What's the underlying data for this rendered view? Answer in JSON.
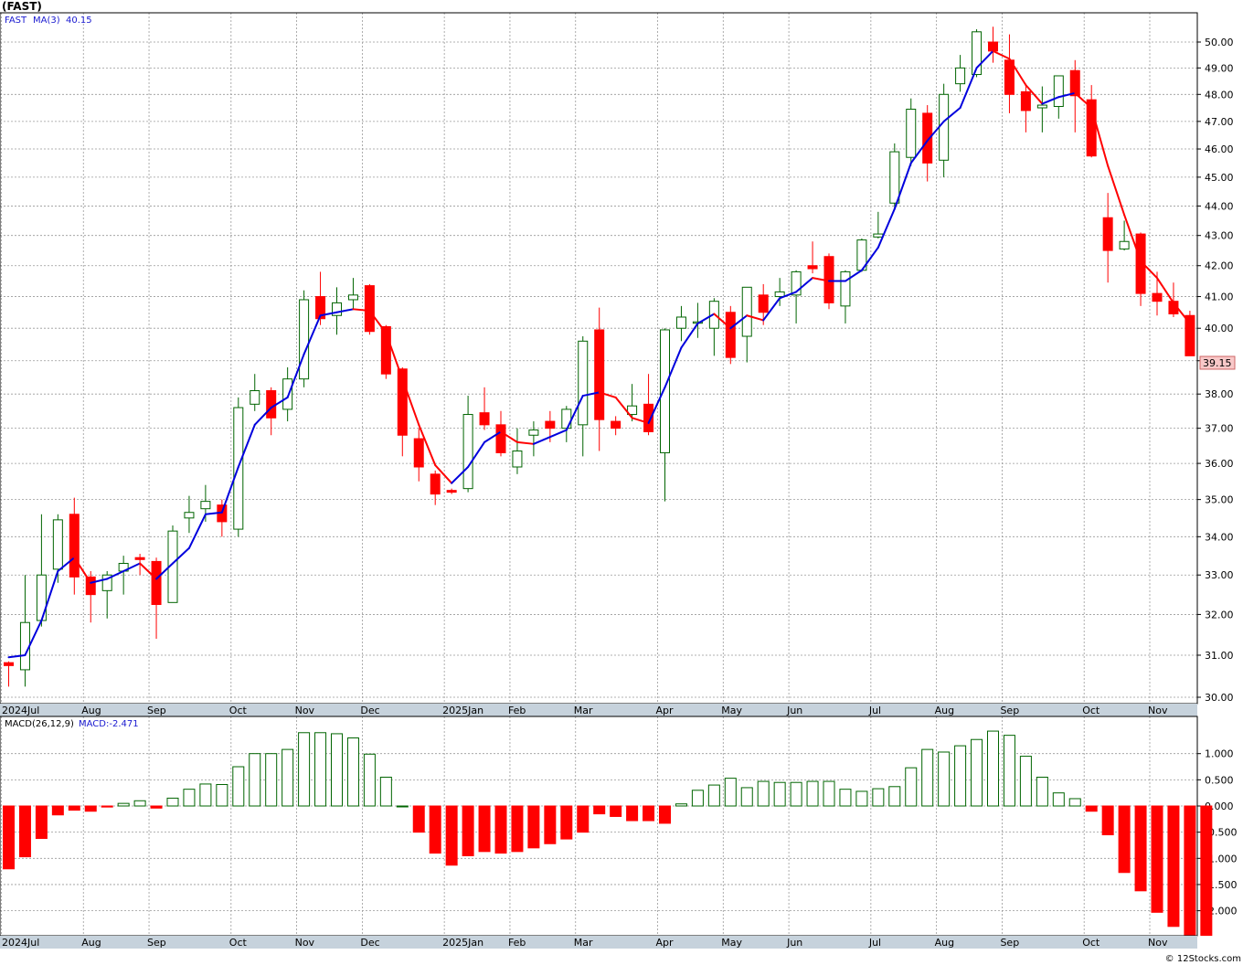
{
  "title": "(FAST)",
  "credit": "© 12Stocks.com",
  "legend": {
    "symbol": "FAST",
    "ma_label": "MA(3)",
    "ma_value": "40.15",
    "macd_params": "MACD(26,12,9)",
    "macd_value": "MACD:-2.471"
  },
  "colors": {
    "up": "#006400",
    "down": "#ff0000",
    "ma_up": "#0000dd",
    "ma_down": "#ff0000",
    "grid": "#999999",
    "axis_band": "#c6d2dc",
    "price_label_bg": "#f8c8c8"
  },
  "last_price_label": "39.15",
  "chart_data": [
    {
      "type": "candlestick",
      "name": "price",
      "y_ticks": [
        "30.00",
        "31.00",
        "32.00",
        "33.00",
        "34.00",
        "35.00",
        "36.00",
        "37.00",
        "38.00",
        "39.00",
        "40.00",
        "41.00",
        "42.00",
        "43.00",
        "44.00",
        "45.00",
        "46.00",
        "47.00",
        "48.00",
        "49.00",
        "50.00"
      ],
      "ylim": [
        29.95,
        50.5
      ],
      "y_scale": "log",
      "grid": true,
      "x_labels": [
        {
          "label": "2024Jul",
          "index": 0
        },
        {
          "label": "Aug",
          "index": 5
        },
        {
          "label": "Sep",
          "index": 9
        },
        {
          "label": "Oct",
          "index": 14
        },
        {
          "label": "Nov",
          "index": 18
        },
        {
          "label": "Dec",
          "index": 22
        },
        {
          "label": "2025Jan",
          "index": 27
        },
        {
          "label": "Feb",
          "index": 31
        },
        {
          "label": "Mar",
          "index": 35
        },
        {
          "label": "Apr",
          "index": 40
        },
        {
          "label": "May",
          "index": 44
        },
        {
          "label": "Jun",
          "index": 48
        },
        {
          "label": "Jul",
          "index": 53
        },
        {
          "label": "Aug",
          "index": 57
        },
        {
          "label": "Sep",
          "index": 61
        },
        {
          "label": "Oct",
          "index": 66
        },
        {
          "label": "Nov",
          "index": 70
        }
      ],
      "candles": [
        {
          "o": 30.82,
          "h": 30.85,
          "l": 30.25,
          "c": 30.75
        },
        {
          "o": 30.65,
          "h": 33.0,
          "l": 30.25,
          "c": 31.8
        },
        {
          "o": 31.85,
          "h": 34.6,
          "l": 31.7,
          "c": 33.0
        },
        {
          "o": 33.15,
          "h": 34.6,
          "l": 32.8,
          "c": 34.45
        },
        {
          "o": 34.6,
          "h": 35.05,
          "l": 32.5,
          "c": 32.95
        },
        {
          "o": 32.95,
          "h": 33.1,
          "l": 31.8,
          "c": 32.5
        },
        {
          "o": 32.6,
          "h": 33.1,
          "l": 31.9,
          "c": 33.0
        },
        {
          "o": 33.1,
          "h": 33.5,
          "l": 32.5,
          "c": 33.3
        },
        {
          "o": 33.45,
          "h": 33.55,
          "l": 33.0,
          "c": 33.4
        },
        {
          "o": 33.35,
          "h": 33.45,
          "l": 31.4,
          "c": 32.25
        },
        {
          "o": 32.3,
          "h": 34.3,
          "l": 32.3,
          "c": 34.15
        },
        {
          "o": 34.5,
          "h": 35.1,
          "l": 34.1,
          "c": 34.65
        },
        {
          "o": 34.75,
          "h": 35.4,
          "l": 34.4,
          "c": 34.95
        },
        {
          "o": 34.85,
          "h": 35.0,
          "l": 34.0,
          "c": 34.4
        },
        {
          "o": 34.2,
          "h": 37.9,
          "l": 34.0,
          "c": 37.6
        },
        {
          "o": 37.7,
          "h": 38.6,
          "l": 37.5,
          "c": 38.1
        },
        {
          "o": 38.1,
          "h": 38.2,
          "l": 36.8,
          "c": 37.3
        },
        {
          "o": 37.55,
          "h": 38.8,
          "l": 37.2,
          "c": 38.45
        },
        {
          "o": 38.45,
          "h": 41.2,
          "l": 38.2,
          "c": 40.9
        },
        {
          "o": 41.0,
          "h": 41.8,
          "l": 40.1,
          "c": 40.3
        },
        {
          "o": 40.4,
          "h": 41.3,
          "l": 39.8,
          "c": 40.8
        },
        {
          "o": 40.9,
          "h": 41.6,
          "l": 40.6,
          "c": 41.05
        },
        {
          "o": 41.35,
          "h": 41.4,
          "l": 39.8,
          "c": 39.9
        },
        {
          "o": 40.05,
          "h": 40.1,
          "l": 38.45,
          "c": 38.6
        },
        {
          "o": 38.75,
          "h": 38.8,
          "l": 36.2,
          "c": 36.8
        },
        {
          "o": 36.7,
          "h": 37.0,
          "l": 35.5,
          "c": 35.9
        },
        {
          "o": 35.7,
          "h": 35.8,
          "l": 34.85,
          "c": 35.15
        },
        {
          "o": 35.25,
          "h": 35.3,
          "l": 35.15,
          "c": 35.2
        },
        {
          "o": 35.3,
          "h": 37.95,
          "l": 35.2,
          "c": 37.4
        },
        {
          "o": 37.45,
          "h": 38.2,
          "l": 36.95,
          "c": 37.1
        },
        {
          "o": 37.1,
          "h": 37.5,
          "l": 36.2,
          "c": 36.3
        },
        {
          "o": 35.9,
          "h": 37.0,
          "l": 35.7,
          "c": 36.35
        },
        {
          "o": 36.8,
          "h": 37.2,
          "l": 36.2,
          "c": 36.95
        },
        {
          "o": 37.2,
          "h": 37.5,
          "l": 36.6,
          "c": 37.0
        },
        {
          "o": 37.0,
          "h": 37.65,
          "l": 36.6,
          "c": 37.55
        },
        {
          "o": 37.1,
          "h": 39.75,
          "l": 36.2,
          "c": 39.6
        },
        {
          "o": 39.95,
          "h": 40.65,
          "l": 36.35,
          "c": 37.25
        },
        {
          "o": 37.2,
          "h": 37.35,
          "l": 36.8,
          "c": 37.0
        },
        {
          "o": 37.4,
          "h": 38.3,
          "l": 37.2,
          "c": 37.65
        },
        {
          "o": 37.7,
          "h": 38.6,
          "l": 36.8,
          "c": 36.9
        },
        {
          "o": 36.3,
          "h": 40.0,
          "l": 34.95,
          "c": 39.95
        },
        {
          "o": 40.0,
          "h": 40.7,
          "l": 39.6,
          "c": 40.35
        },
        {
          "o": 40.2,
          "h": 40.8,
          "l": 39.7,
          "c": 40.2
        },
        {
          "o": 40.0,
          "h": 40.95,
          "l": 39.15,
          "c": 40.85
        },
        {
          "o": 40.5,
          "h": 40.7,
          "l": 38.9,
          "c": 39.1
        },
        {
          "o": 39.75,
          "h": 41.3,
          "l": 38.95,
          "c": 41.3
        },
        {
          "o": 41.05,
          "h": 41.4,
          "l": 40.1,
          "c": 40.5
        },
        {
          "o": 41.0,
          "h": 41.6,
          "l": 40.7,
          "c": 41.15
        },
        {
          "o": 41.05,
          "h": 41.85,
          "l": 40.15,
          "c": 41.8
        },
        {
          "o": 42.0,
          "h": 42.8,
          "l": 41.75,
          "c": 41.9
        },
        {
          "o": 42.3,
          "h": 42.4,
          "l": 40.6,
          "c": 40.8
        },
        {
          "o": 40.7,
          "h": 41.85,
          "l": 40.15,
          "c": 41.8
        },
        {
          "o": 41.85,
          "h": 42.9,
          "l": 41.8,
          "c": 42.85
        },
        {
          "o": 42.95,
          "h": 43.8,
          "l": 42.9,
          "c": 43.05
        },
        {
          "o": 44.1,
          "h": 46.2,
          "l": 43.9,
          "c": 45.9
        },
        {
          "o": 45.7,
          "h": 47.85,
          "l": 45.4,
          "c": 47.45
        },
        {
          "o": 47.3,
          "h": 47.6,
          "l": 44.85,
          "c": 45.5
        },
        {
          "o": 45.6,
          "h": 48.4,
          "l": 45.0,
          "c": 48.0
        },
        {
          "o": 48.4,
          "h": 49.5,
          "l": 48.1,
          "c": 49.0
        },
        {
          "o": 48.75,
          "h": 50.5,
          "l": 48.65,
          "c": 50.4
        },
        {
          "o": 50.0,
          "h": 50.6,
          "l": 49.2,
          "c": 49.65
        },
        {
          "o": 49.3,
          "h": 50.3,
          "l": 47.3,
          "c": 48.0
        },
        {
          "o": 48.1,
          "h": 48.4,
          "l": 46.6,
          "c": 47.4
        },
        {
          "o": 47.5,
          "h": 48.3,
          "l": 46.6,
          "c": 47.6
        },
        {
          "o": 47.55,
          "h": 48.7,
          "l": 47.1,
          "c": 48.7
        },
        {
          "o": 48.9,
          "h": 49.3,
          "l": 46.6,
          "c": 47.95
        },
        {
          "o": 47.8,
          "h": 48.35,
          "l": 45.7,
          "c": 45.75
        },
        {
          "o": 43.6,
          "h": 44.45,
          "l": 41.45,
          "c": 42.5
        },
        {
          "o": 42.55,
          "h": 43.5,
          "l": 42.5,
          "c": 42.8
        },
        {
          "o": 43.05,
          "h": 43.1,
          "l": 40.7,
          "c": 41.1
        },
        {
          "o": 41.1,
          "h": 41.8,
          "l": 40.4,
          "c": 40.85
        },
        {
          "o": 40.85,
          "h": 41.45,
          "l": 40.35,
          "c": 40.45
        },
        {
          "o": 40.4,
          "h": 40.55,
          "l": 39.15,
          "c": 39.15
        }
      ],
      "ma": [
        30.95,
        31.0,
        31.85,
        33.1,
        33.45,
        32.8,
        32.9,
        33.1,
        33.3,
        32.9,
        33.3,
        33.7,
        34.6,
        34.65,
        35.9,
        37.1,
        37.6,
        37.9,
        39.2,
        40.4,
        40.5,
        40.6,
        40.55,
        39.85,
        38.45,
        37.1,
        35.95,
        35.45,
        35.9,
        36.6,
        36.9,
        36.6,
        36.55,
        36.75,
        36.95,
        37.95,
        38.05,
        37.9,
        37.3,
        37.15,
        38.2,
        39.4,
        40.15,
        40.45,
        40.0,
        40.4,
        40.25,
        40.95,
        41.15,
        41.6,
        41.5,
        41.5,
        41.85,
        42.6,
        43.9,
        45.5,
        46.3,
        47.0,
        47.5,
        49.0,
        49.65,
        49.35,
        48.35,
        47.65,
        47.9,
        48.05,
        47.5,
        45.4,
        43.7,
        42.15,
        41.6,
        40.8,
        40.15
      ]
    },
    {
      "type": "bar",
      "name": "MACD(26,12,9)",
      "y_ticks": [
        "1.000",
        "0.500",
        "0.000",
        "-0.500",
        "-1.000",
        "-1.500",
        "-2.000"
      ],
      "ylim": [
        -2.45,
        1.4
      ],
      "values": [
        -1.2,
        -0.97,
        -0.62,
        -0.17,
        -0.08,
        -0.1,
        -0.02,
        0.05,
        0.1,
        -0.04,
        0.15,
        0.32,
        0.42,
        0.41,
        0.75,
        1.0,
        1.0,
        1.08,
        1.4,
        1.4,
        1.38,
        1.3,
        0.99,
        0.55,
        0.0,
        -0.5,
        -0.9,
        -1.13,
        -0.95,
        -0.87,
        -0.9,
        -0.87,
        -0.8,
        -0.72,
        -0.63,
        -0.5,
        -0.15,
        -0.2,
        -0.28,
        -0.28,
        -0.33,
        0.04,
        0.3,
        0.4,
        0.53,
        0.35,
        0.47,
        0.45,
        0.45,
        0.47,
        0.47,
        0.32,
        0.28,
        0.33,
        0.37,
        0.73,
        1.08,
        1.03,
        1.15,
        1.27,
        1.43,
        1.35,
        0.95,
        0.55,
        0.25,
        0.14,
        -0.1,
        -0.55,
        -1.27,
        -1.62,
        -2.03,
        -2.3,
        -2.46,
        -2.471
      ]
    }
  ]
}
